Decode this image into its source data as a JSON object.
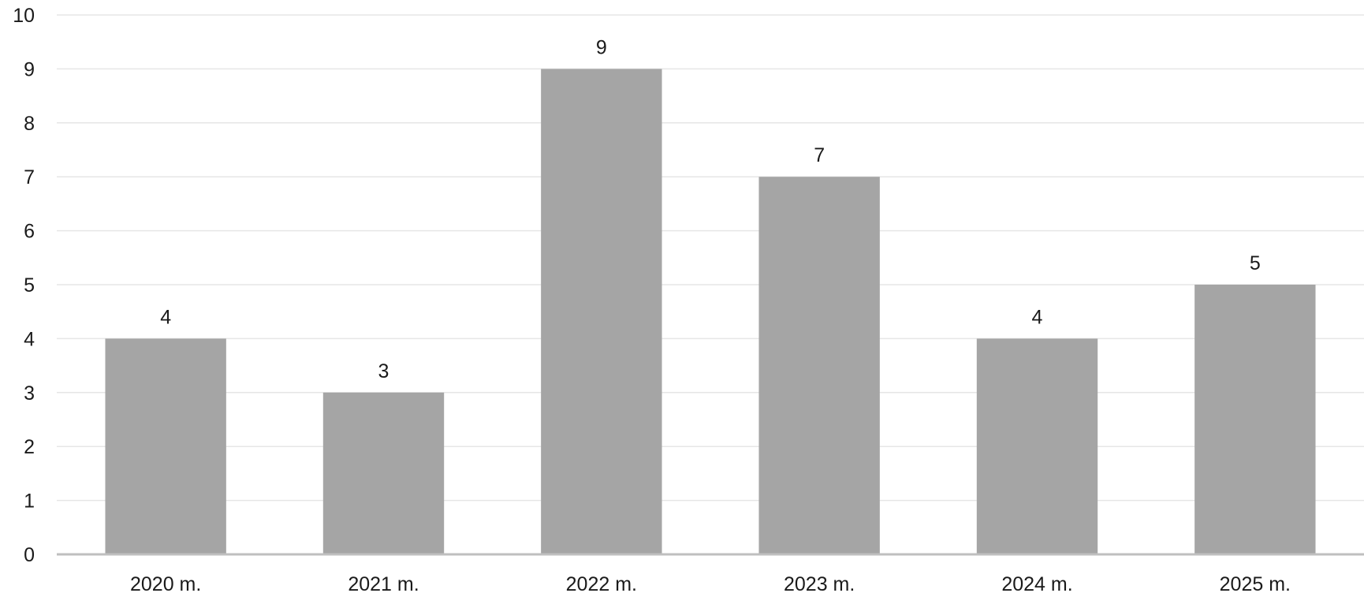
{
  "chart_data": {
    "type": "bar",
    "title": "",
    "xlabel": "",
    "ylabel": "",
    "categories": [
      "2020 m.",
      "2021 m.",
      "2022 m.",
      "2023 m.",
      "2024 m.",
      "2025 m."
    ],
    "values": [
      4,
      3,
      9,
      7,
      4,
      5
    ],
    "ylim": [
      0,
      10
    ],
    "yticks": [
      0,
      1,
      2,
      3,
      4,
      5,
      6,
      7,
      8,
      9,
      10
    ],
    "grid": true,
    "legend": "none",
    "data_labels": true,
    "colors": {
      "bar": "#a5a5a5",
      "grid": "#e6e6e6",
      "axis": "#bfbfbf",
      "text": "#1a1a1a"
    }
  }
}
